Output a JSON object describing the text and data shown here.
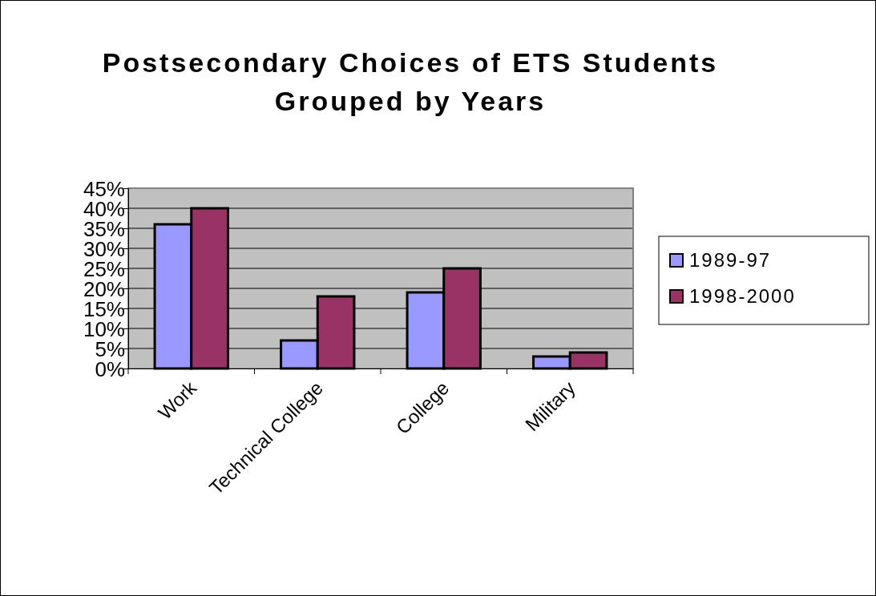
{
  "chart_data": {
    "type": "bar",
    "title": "Postsecondary Choices of ETS Students Grouped by Years",
    "categories": [
      "Work",
      "Technical College",
      "College",
      "Military"
    ],
    "series": [
      {
        "name": "1989-97",
        "color": "#9999ff",
        "values": [
          36,
          7,
          19,
          3
        ]
      },
      {
        "name": "1998-2000",
        "color": "#993366",
        "values": [
          40,
          18,
          25,
          4
        ]
      }
    ],
    "ylim": [
      0,
      45
    ],
    "yticks": [
      {
        "value": 0,
        "label": "0%"
      },
      {
        "value": 5,
        "label": "5%"
      },
      {
        "value": 10,
        "label": "10%"
      },
      {
        "value": 15,
        "label": "15%"
      },
      {
        "value": 20,
        "label": "20%"
      },
      {
        "value": 25,
        "label": "25%"
      },
      {
        "value": 30,
        "label": "30%"
      },
      {
        "value": 35,
        "label": "35%"
      },
      {
        "value": 40,
        "label": "40%"
      },
      {
        "value": 45,
        "label": "45%"
      }
    ],
    "grid": "y",
    "legend": "right"
  }
}
